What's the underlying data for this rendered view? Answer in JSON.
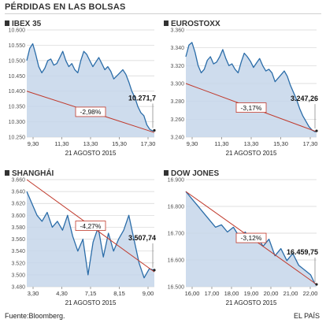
{
  "title": "PÉRDIDAS EN LAS BOLSAS",
  "footer": {
    "source": "Fuente:Bloomberg.",
    "brand": "EL PAÍS"
  },
  "colors": {
    "line": "#2a6ca8",
    "area": "#c6d6ea",
    "trend": "#c0392b",
    "grid": "#d4d4d4",
    "text": "#333333"
  },
  "chart_data": [
    {
      "type": "area",
      "title": "IBEX 35",
      "xlabel": "21 AGOSTO 2015",
      "x_ticks": [
        "9,30",
        "11,30",
        "13,30",
        "15,30",
        "17,30"
      ],
      "y_ticks": [
        "10.600",
        "10.550",
        "10.500",
        "10.450",
        "10.400",
        "10.350",
        "10.300",
        "10.250"
      ],
      "ylim": [
        10250,
        10600
      ],
      "xlim": [
        9.0,
        17.5
      ],
      "last_value_label": "10.271,7",
      "change_label": "-2,98%",
      "trend": {
        "from": [
          9.0,
          10400
        ],
        "to": [
          17.5,
          10265
        ]
      },
      "series": [
        {
          "x": [
            9.0,
            9.2,
            9.4,
            9.6,
            9.8,
            10.0,
            10.2,
            10.4,
            10.6,
            10.8,
            11.0,
            11.2,
            11.4,
            11.6,
            11.8,
            12.0,
            12.2,
            12.4,
            12.6,
            12.8,
            13.0,
            13.2,
            13.4,
            13.6,
            13.8,
            14.0,
            14.2,
            14.4,
            14.6,
            14.8,
            15.0,
            15.2,
            15.4,
            15.6,
            15.8,
            16.0,
            16.2,
            16.4,
            16.6,
            16.8,
            17.0,
            17.2,
            17.4,
            17.5
          ],
          "y": [
            10500,
            10540,
            10555,
            10520,
            10480,
            10460,
            10475,
            10500,
            10505,
            10485,
            10490,
            10510,
            10530,
            10500,
            10480,
            10490,
            10470,
            10460,
            10500,
            10530,
            10520,
            10500,
            10480,
            10495,
            10510,
            10490,
            10470,
            10480,
            10465,
            10440,
            10450,
            10460,
            10470,
            10455,
            10430,
            10400,
            10380,
            10350,
            10330,
            10320,
            10290,
            10275,
            10270,
            10272
          ]
        }
      ]
    },
    {
      "type": "area",
      "title": "EUROSTOXX",
      "xlabel": "21 AGOSTO 2015",
      "x_ticks": [
        "9,30",
        "11,30",
        "13,30",
        "15,30",
        "17,30"
      ],
      "y_ticks": [
        "3.360",
        "3.340",
        "3.320",
        "3.300",
        "3.280",
        "3.260",
        "3.240"
      ],
      "ylim": [
        3240,
        3360
      ],
      "xlim": [
        9.0,
        17.5
      ],
      "last_value_label": "3.247,26",
      "change_label": "-3,17%",
      "trend": {
        "from": [
          9.0,
          3300
        ],
        "to": [
          17.5,
          3246
        ]
      },
      "series": [
        {
          "x": [
            9.0,
            9.2,
            9.4,
            9.6,
            9.8,
            10.0,
            10.2,
            10.4,
            10.6,
            10.8,
            11.0,
            11.2,
            11.4,
            11.6,
            11.8,
            12.0,
            12.2,
            12.4,
            12.6,
            12.8,
            13.0,
            13.2,
            13.4,
            13.6,
            13.8,
            14.0,
            14.2,
            14.4,
            14.6,
            14.8,
            15.0,
            15.2,
            15.4,
            15.6,
            15.8,
            16.0,
            16.2,
            16.4,
            16.6,
            16.8,
            17.0,
            17.2,
            17.4,
            17.5
          ],
          "y": [
            3330,
            3343,
            3346,
            3335,
            3320,
            3312,
            3316,
            3326,
            3330,
            3322,
            3324,
            3330,
            3338,
            3328,
            3320,
            3322,
            3316,
            3312,
            3324,
            3334,
            3330,
            3325,
            3318,
            3323,
            3328,
            3320,
            3314,
            3316,
            3312,
            3302,
            3306,
            3310,
            3314,
            3308,
            3298,
            3290,
            3282,
            3272,
            3264,
            3258,
            3252,
            3248,
            3246,
            3247
          ]
        }
      ]
    },
    {
      "type": "area",
      "title": "SHANGHÁI",
      "xlabel": "21 AGOSTO 2015",
      "x_ticks": [
        "3,30",
        "4,30",
        "7,15",
        "8,15",
        "9,00"
      ],
      "y_ticks": [
        "3.660",
        "3.640",
        "3.620",
        "3.600",
        "3.580",
        "3.560",
        "3.540",
        "3.520",
        "3.500",
        "3.480"
      ],
      "ylim": [
        3480,
        3660
      ],
      "xlim": [
        0,
        100
      ],
      "last_value_label": "3.507,74",
      "change_label": "-4,27%",
      "trend": {
        "from": [
          0,
          3660
        ],
        "to": [
          100,
          3505
        ]
      },
      "series": [
        {
          "x": [
            0,
            4,
            8,
            12,
            16,
            20,
            24,
            28,
            32,
            36,
            40,
            44,
            48,
            52,
            56,
            60,
            64,
            68,
            72,
            76,
            80,
            84,
            88,
            92,
            96,
            100
          ],
          "y": [
            3640,
            3620,
            3600,
            3590,
            3605,
            3580,
            3590,
            3575,
            3600,
            3565,
            3540,
            3560,
            3500,
            3555,
            3580,
            3530,
            3570,
            3540,
            3560,
            3575,
            3600,
            3560,
            3520,
            3495,
            3510,
            3508
          ]
        }
      ]
    },
    {
      "type": "area",
      "title": "DOW JONES",
      "xlabel": "21 AGOSTO 2015",
      "x_ticks": [
        "16,00",
        "17,00",
        "18,00",
        "19,00",
        "20,00",
        "21,00",
        "22,00"
      ],
      "y_ticks": [
        "16.900",
        "16.800",
        "16.700",
        "16.600",
        "16.500"
      ],
      "ylim": [
        16450,
        16900
      ],
      "xlim": [
        15.5,
        22.1
      ],
      "last_value_label": "16.459,75",
      "change_label": "-3,12%",
      "trend": {
        "from": [
          15.5,
          16850
        ],
        "to": [
          22.1,
          16460
        ]
      },
      "series": [
        {
          "x": [
            15.5,
            15.8,
            16.1,
            16.4,
            16.7,
            17.0,
            17.3,
            17.6,
            17.9,
            18.2,
            18.5,
            18.8,
            19.1,
            19.4,
            19.7,
            20.0,
            20.3,
            20.6,
            20.9,
            21.2,
            21.5,
            21.8,
            22.0,
            22.1
          ],
          "y": [
            16850,
            16820,
            16790,
            16760,
            16730,
            16700,
            16710,
            16680,
            16700,
            16660,
            16680,
            16640,
            16660,
            16620,
            16650,
            16580,
            16610,
            16560,
            16590,
            16540,
            16520,
            16500,
            16465,
            16460
          ]
        }
      ]
    }
  ]
}
